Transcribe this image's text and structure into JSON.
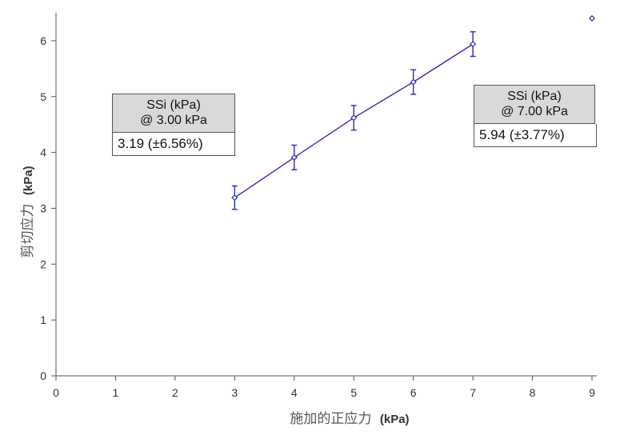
{
  "chart_data": {
    "type": "scatter",
    "title": "",
    "xlabel": {
      "text": "施加的正应力",
      "unit": "(kPa)"
    },
    "ylabel": {
      "text": "剪切应力",
      "unit": "(kPa)"
    },
    "xlim": [
      0,
      9
    ],
    "ylim": [
      0,
      6.5
    ],
    "x_ticks": [
      "0",
      "1",
      "2",
      "3",
      "4",
      "5",
      "6",
      "7",
      "8",
      "9"
    ],
    "y_ticks": [
      "0",
      "1",
      "2",
      "3",
      "4",
      "5",
      "6"
    ],
    "grid": false,
    "line_color": "#2e2ea8",
    "series": [
      {
        "x": [
          3,
          4,
          5,
          6,
          7
        ],
        "y": [
          3.19,
          3.91,
          4.62,
          5.26,
          5.94
        ],
        "error": [
          0.21,
          0.22,
          0.22,
          0.22,
          0.22
        ],
        "connect": true
      },
      {
        "x": [
          9
        ],
        "y": [
          6.4
        ],
        "error": [
          0
        ],
        "connect": false
      }
    ]
  },
  "callouts": {
    "left": {
      "head_line1": "SSi (kPa)",
      "head_line2": "@ 3.00 kPa",
      "value": "3.19 (±6.56%)"
    },
    "right": {
      "head_line1": "SSi (kPa)",
      "head_line2": "@ 7.00 kPa",
      "value": "5.94 (±3.77%)"
    }
  }
}
